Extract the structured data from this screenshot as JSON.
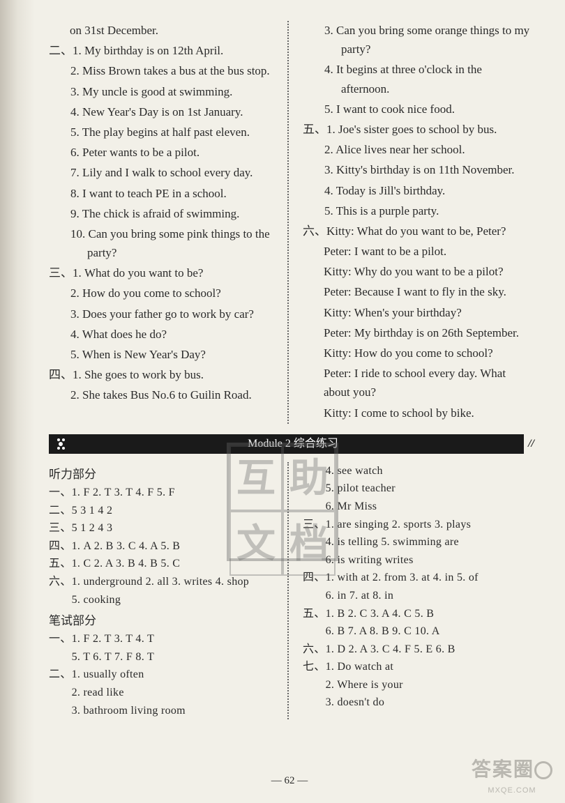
{
  "top": {
    "left": {
      "intro": "on 31st December.",
      "sec2": {
        "label": "二、",
        "items": [
          "My birthday is on 12th April.",
          "Miss Brown takes a bus at the bus stop.",
          "My uncle is good at swimming.",
          "New Year's Day is on 1st January.",
          "The play begins at half past eleven.",
          "Peter wants to be a pilot.",
          "Lily and I walk to school every day.",
          "I want to teach PE in a school.",
          "The chick is afraid of swimming.",
          "Can you bring some pink things to the party?"
        ]
      },
      "sec3": {
        "label": "三、",
        "items": [
          "What do you want to be?",
          "How do you come to school?",
          "Does your father go to work by car?",
          "What does he do?",
          "When is New Year's Day?"
        ]
      },
      "sec4": {
        "label": "四、",
        "items": [
          "She goes to work by bus.",
          "She takes Bus No.6 to Guilin Road."
        ]
      }
    },
    "right": {
      "sec4cont": [
        "Can you bring some orange things to my party?",
        "It begins at three o'clock in the afternoon.",
        "I want to cook nice food."
      ],
      "sec5": {
        "label": "五、",
        "items": [
          "Joe's sister goes to school by bus.",
          "Alice lives near her school.",
          "Kitty's birthday is on 11th November.",
          "Today is Jill's birthday.",
          "This is a purple party."
        ]
      },
      "sec6": {
        "label": "六、",
        "dialog": [
          {
            "s": "Kitty: ",
            "t": "What do you want to be, Peter?"
          },
          {
            "s": "Peter: ",
            "t": "I want to be a pilot."
          },
          {
            "s": "Kitty: ",
            "t": "Why do you want to be a pilot?"
          },
          {
            "s": "Peter: ",
            "t": "Because I want to fly in the sky."
          },
          {
            "s": "Kitty: ",
            "t": "When's your birthday?"
          },
          {
            "s": "Peter: ",
            "t": "My birthday is on 26th September."
          },
          {
            "s": "Kitty: ",
            "t": "How do you come to school?"
          },
          {
            "s": "Peter: ",
            "t": "I ride to school every day. What about you?"
          },
          {
            "s": "Kitty: ",
            "t": "I come to school by bike."
          }
        ]
      }
    }
  },
  "module_banner": "Module 2    综合练习",
  "bottom": {
    "left": {
      "listening_title": "听力部分",
      "rows": [
        "一、1. F   2. T   3. T   4. F   5. F",
        "二、5   3   1   4   2",
        "三、5   1   2   4   3",
        "四、1. A   2. B   3. C   4. A   5. B",
        "五、1. C   2. A   3. B   4. B   5. C",
        "六、1. underground   2. all   3. writes   4. shop",
        "　　5. cooking"
      ],
      "written_title": "笔试部分",
      "written_rows": [
        "一、1. F   2. T   3. T   4. T",
        "　　5. T   6. T   7. F   8. T",
        "二、1. usually   often",
        "　　2. read   like",
        "　　3. bathroom   living room"
      ]
    },
    "right": {
      "rows": [
        "　　4. see   watch",
        "　　5. pilot   teacher",
        "　　6. Mr   Miss",
        "三、1. are singing   2. sports   3. plays",
        "　　4. is telling   5. swimming   are",
        "　　6. is writing   writes",
        "四、1. with   at   2. from   3. at   4. in   5. of",
        "　　6. in   7. at   8. in",
        "五、1. B   2. C   3. A   4. C   5. B",
        "　　6. B   7. A   8. B   9. C   10. A",
        "六、1. D   2. A   3. C   4. F   5. E   6. B",
        "七、1. Do   watch   at",
        "　　2. Where is your",
        "　　3. doesn't do"
      ]
    }
  },
  "page_number": "— 62 —",
  "watermark": [
    "互",
    "助",
    "文",
    "档"
  ],
  "brand": {
    "big": "答案圈",
    "small": "MXQE.COM"
  }
}
